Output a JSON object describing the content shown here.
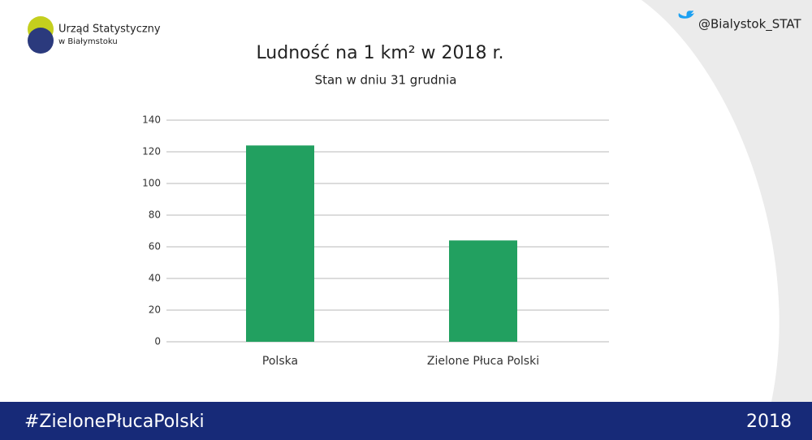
{
  "header": {
    "org_name": "Urząd Statystyczny",
    "org_city": "w Białymstoku",
    "twitter": "@Bialystok_STAT"
  },
  "footer": {
    "hashtag": "#ZielonePłucaPolski",
    "year": "2018"
  },
  "chart_data": {
    "type": "bar",
    "title": "Ludność na 1 km² w 2018 r.",
    "subtitle": "Stan w dniu 31 grudnia",
    "categories": [
      "Polska",
      "Zielone Płuca Polski"
    ],
    "values": [
      124,
      64
    ],
    "color": "#22a060",
    "ylim": [
      0,
      140
    ],
    "yticks": [
      0,
      20,
      40,
      60,
      80,
      100,
      120,
      140
    ],
    "grid": true
  }
}
